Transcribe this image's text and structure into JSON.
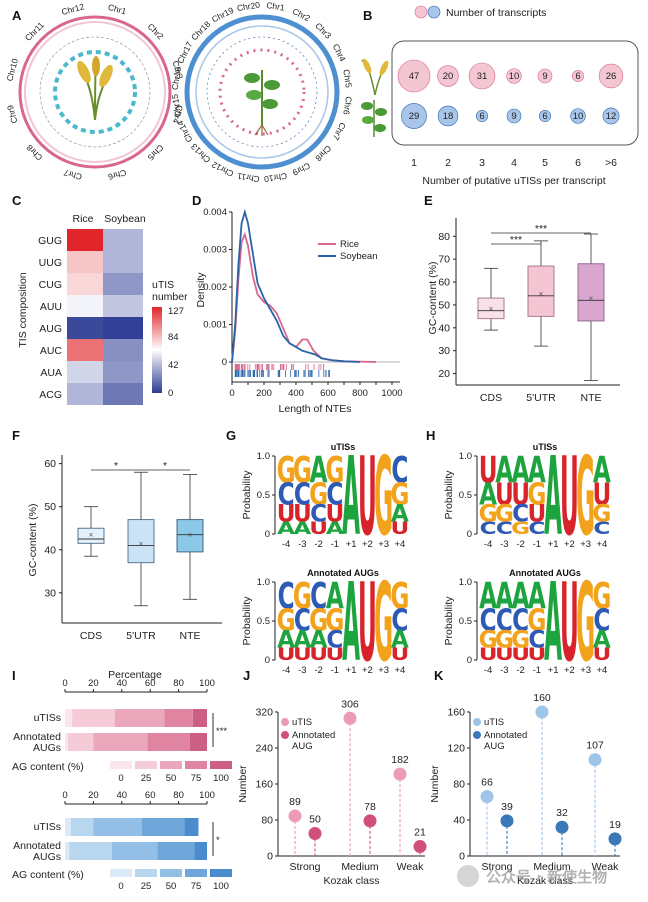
{
  "panel_labels": [
    "A",
    "B",
    "C",
    "D",
    "E",
    "F",
    "G",
    "H",
    "I",
    "J",
    "K"
  ],
  "colors": {
    "rice": "#d9668f",
    "rice_light": "#f3c6d2",
    "soy": "#2a64a8",
    "soy_light": "#a9c6ea",
    "pink_mid": "#e8a0b6"
  },
  "panelA": {
    "rice_chromosomes": [
      "Chr1",
      "Chr2",
      "Chr3",
      "Chr4",
      "Chr5",
      "Chr6",
      "Chr7",
      "Chr8",
      "Chr9",
      "Chr10",
      "Chr11",
      "Chr12"
    ],
    "soy_chromosomes": [
      "Chr1",
      "Chr2",
      "Chr3",
      "Chr4",
      "Chr5",
      "Chr6",
      "Chr7",
      "Chr8",
      "Chr9",
      "Chr10",
      "Chr11",
      "Chr12",
      "Chr13",
      "Chr14",
      "Chr15",
      "Chr16",
      "Chr17",
      "Chr18",
      "Chr19",
      "Chr20"
    ]
  },
  "panelB": {
    "legend": "Number of transcripts",
    "xlabel": "Number of putative uTISs per transcript",
    "categories": [
      "1",
      "2",
      "3",
      "4",
      "5",
      "6",
      ">6"
    ],
    "rice": [
      47,
      20,
      31,
      10,
      9,
      6,
      26
    ],
    "soybean": [
      29,
      18,
      6,
      9,
      6,
      10,
      12
    ]
  },
  "panelC": {
    "columns": [
      "Rice",
      "Soybean"
    ],
    "rows": [
      "GUG",
      "UUG",
      "CUG",
      "AUU",
      "AUG",
      "AUC",
      "AUA",
      "ACG"
    ],
    "ylabel": "TIS composition",
    "legend_title": [
      "uTIS",
      "number"
    ],
    "legend_ticks": [
      "127",
      "84",
      "42",
      "0"
    ],
    "values_rice": [
      127,
      80,
      75,
      60,
      5,
      105,
      50,
      40
    ],
    "values_soy": [
      40,
      40,
      30,
      45,
      2,
      28,
      30,
      20
    ]
  },
  "panelD": {
    "xlabel": "Length of NTEs",
    "ylabel": "Density",
    "yticks": [
      "0",
      "0.001",
      "0.002",
      "0.003",
      "0.004"
    ],
    "xticks": [
      "0",
      "100",
      "200",
      "300",
      "400",
      "500",
      "600",
      "700",
      "800",
      "900",
      "1000"
    ],
    "legend": [
      "Rice",
      "Soybean"
    ]
  },
  "panelE": {
    "ylabel": "GC-content (%)",
    "yticks": [
      "20",
      "30",
      "40",
      "50",
      "60",
      "70",
      "80"
    ],
    "categories": [
      "CDS",
      "5'UTR",
      "NTE"
    ],
    "boxes": [
      {
        "min": 39,
        "q1": 44,
        "median": 47.5,
        "q3": 53,
        "max": 66,
        "mean": 48.5
      },
      {
        "min": 32,
        "q1": 45,
        "median": 54,
        "q3": 67,
        "max": 78,
        "mean": 55
      },
      {
        "min": 17,
        "q1": 43,
        "median": 52,
        "q3": 68,
        "max": 81,
        "mean": 53
      }
    ],
    "sig": [
      "***",
      "***"
    ]
  },
  "panelF": {
    "ylabel": "GC-content (%)",
    "yticks": [
      "30",
      "40",
      "50",
      "60"
    ],
    "categories": [
      "CDS",
      "5'UTR",
      "NTE"
    ],
    "boxes": [
      {
        "min": 38.5,
        "q1": 41.5,
        "median": 42.5,
        "q3": 45,
        "max": 50,
        "mean": 43.5
      },
      {
        "min": 27,
        "q1": 37,
        "median": 41,
        "q3": 47,
        "max": 58,
        "mean": 41.5
      },
      {
        "min": 28.5,
        "q1": 39.5,
        "median": 43.5,
        "q3": 47,
        "max": 57.5,
        "mean": 43.5
      }
    ],
    "sig": [
      "*",
      "*"
    ]
  },
  "panelG": {
    "logo_titles": [
      "uTISs",
      "Annotated AUGs"
    ],
    "ylabel": "Probability",
    "yticks": [
      "0",
      "0.5",
      "1.0"
    ],
    "positions": [
      "-4",
      "-3",
      "-2",
      "-1",
      "+1",
      "+2",
      "+3",
      "+4"
    ],
    "utis_letters": [
      "GCUA",
      "GCUA",
      "AGCU",
      "GCUA",
      "A",
      "U",
      "G",
      "CGAU"
    ],
    "aug_letters": [
      "CGAU",
      "GCAU",
      "CGAU",
      "AGCU",
      "A",
      "U",
      "G",
      "GCAU"
    ]
  },
  "panelH": {
    "logo_titles": [
      "uTISs",
      "Annotated AUGs"
    ],
    "ylabel": "Probability",
    "yticks": [
      "0",
      "0.5",
      "1.0"
    ],
    "positions": [
      "-4",
      "-3",
      "-2",
      "-1",
      "+1",
      "+2",
      "+3",
      "+4"
    ],
    "utis_letters": [
      "UAGC",
      "AUGC",
      "AUCG",
      "AGUC",
      "A",
      "U",
      "G",
      "AUGC"
    ],
    "aug_letters": [
      "ACGU",
      "ACGU",
      "ACGU",
      "AGCU",
      "A",
      "U",
      "G",
      "GCAU"
    ]
  },
  "panelI": {
    "axis_title": "Percentage",
    "ticks": [
      "0",
      "20",
      "40",
      "60",
      "80",
      "100"
    ],
    "rows": [
      "uTISs",
      "Annotated AUGs"
    ],
    "legend_title": "AG content (%)",
    "legend_ticks": [
      "0",
      "25",
      "50",
      "75",
      "100"
    ],
    "rice": [
      [
        5,
        30,
        35,
        20,
        10
      ],
      [
        2,
        18,
        38,
        30,
        12
      ]
    ],
    "soy": [
      [
        4,
        16,
        34,
        30,
        10
      ],
      [
        3,
        30,
        32,
        26,
        9
      ]
    ],
    "sig_rice": "***",
    "sig_soy": "*"
  },
  "chart_data": [
    {
      "type": "scatter",
      "title": "J",
      "xlabel": "Kozak class",
      "ylabel": "Number",
      "categories": [
        "Strong",
        "Medium",
        "Weak"
      ],
      "ylim": [
        0,
        320
      ],
      "yticks": [
        "0",
        "80",
        "160",
        "240",
        "320"
      ],
      "legend": [
        "uTIS",
        "Annotated AUG"
      ],
      "series": [
        {
          "name": "uTIS",
          "values": [
            89,
            306,
            182
          ]
        },
        {
          "name": "Annotated AUG",
          "values": [
            50,
            78,
            21
          ]
        }
      ]
    },
    {
      "type": "scatter",
      "title": "K",
      "xlabel": "Kozak class",
      "ylabel": "Number",
      "categories": [
        "Strong",
        "Medium",
        "Weak"
      ],
      "ylim": [
        0,
        160
      ],
      "yticks": [
        "0",
        "40",
        "80",
        "120",
        "160"
      ],
      "legend": [
        "uTIS",
        "Annotated AUG"
      ],
      "series": [
        {
          "name": "uTIS",
          "values": [
            66,
            160,
            107
          ]
        },
        {
          "name": "Annotated AUG",
          "values": [
            39,
            32,
            19
          ]
        }
      ]
    }
  ],
  "watermark": "公众号 · 新使生物"
}
